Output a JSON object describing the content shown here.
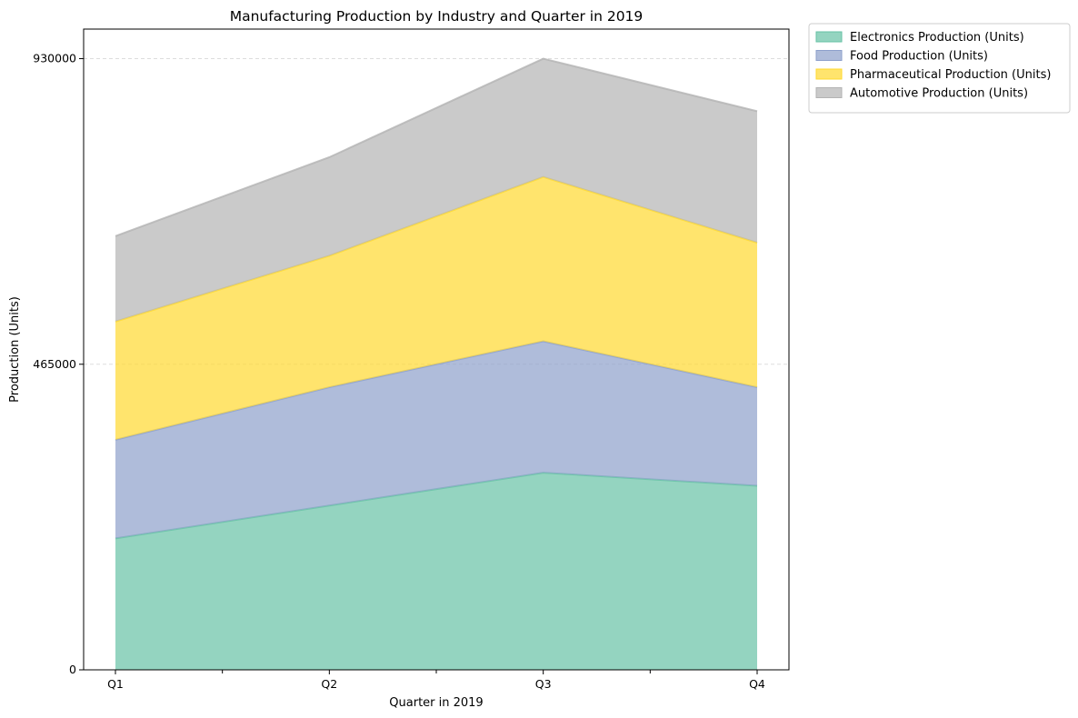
{
  "chart_data": {
    "type": "area",
    "stacked": true,
    "title": "Manufacturing Production by Industry and Quarter in 2019",
    "xlabel": "Quarter in 2019",
    "ylabel": "Production (Units)",
    "categories": [
      "Q1",
      "Q2",
      "Q3",
      "Q4"
    ],
    "ylim": [
      0,
      975000
    ],
    "yticks": [
      0,
      465000,
      930000
    ],
    "ytick_labels": [
      "0",
      "465000",
      "930000"
    ],
    "grid": "horizontal dashed",
    "legend_position": "outside-top-right",
    "series": [
      {
        "name": "Electronics Production (Units)",
        "values": [
          200000,
          250000,
          300000,
          280000
        ],
        "color": "#66c2a5"
      },
      {
        "name": "Food Production (Units)",
        "values": [
          150000,
          180000,
          200000,
          150000
        ],
        "color": "#8da0cb"
      },
      {
        "name": "Pharmaceutical Production (Units)",
        "values": [
          180000,
          200000,
          250000,
          220000
        ],
        "color": "#ffd92f"
      },
      {
        "name": "Automotive Production (Units)",
        "values": [
          130000,
          150000,
          180000,
          200000
        ],
        "color": "#b3b3b3"
      }
    ]
  }
}
